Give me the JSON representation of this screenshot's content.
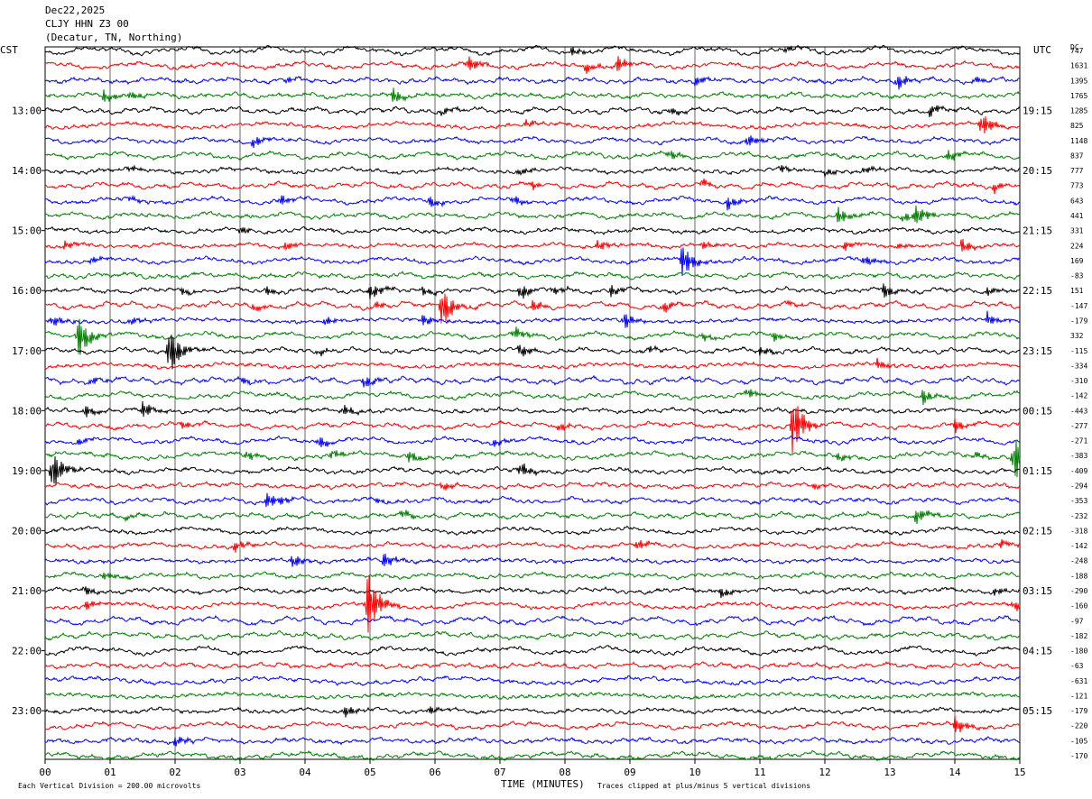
{
  "header": {
    "date": "Dec22,2025",
    "station": "CLJY HHN Z3 00",
    "location": "(Decatur, TN, Northing)"
  },
  "left_axis_title": "CST",
  "right_axis_title": "UTC",
  "dc_title": "DC",
  "footer": {
    "scale_note": "Each Vertical Division =  200.00 microvolts",
    "xlabel": "TIME (MINUTES)",
    "clip_note": "Traces clipped at plus/minus 5 vertical divisions"
  },
  "chart_data": {
    "type": "line",
    "title": "CLJY HHN Z3 00",
    "xlabel": "TIME (MINUTES)",
    "xlim": [
      0,
      15
    ],
    "x_ticks": [
      "00",
      "01",
      "02",
      "03",
      "04",
      "05",
      "06",
      "07",
      "08",
      "09",
      "10",
      "11",
      "12",
      "13",
      "14",
      "15"
    ],
    "trace_colors": [
      "#000000",
      "#ff0000",
      "#0000ff",
      "#007f00"
    ],
    "left_time_labels": [
      "13:00",
      "14:00",
      "15:00",
      "16:00",
      "17:00",
      "18:00",
      "19:00",
      "20:00",
      "21:00",
      "22:00",
      "23:00"
    ],
    "right_time_labels": [
      "19:15",
      "20:15",
      "21:15",
      "22:15",
      "23:15",
      "00:15",
      "01:15",
      "02:15",
      "03:15",
      "04:15",
      "05:15"
    ],
    "dc_offsets": [
      "747",
      "1631",
      "1395",
      "1765",
      "1285",
      "825",
      "1148",
      "837",
      "777",
      "773",
      "643",
      "441",
      "331",
      "224",
      "169",
      "-83",
      "151",
      "-147",
      "-179",
      "332",
      "-115",
      "-334",
      "-310",
      "-142",
      "-443",
      "-277",
      "-271",
      "-383",
      "-409",
      "-294",
      "-353",
      "-232",
      "-318",
      "-142",
      "-248",
      "-188",
      "-290",
      "-160",
      "-97",
      "-182",
      "-180",
      "-63",
      "-631",
      "-121",
      "-179",
      "-220",
      "-105",
      "-170"
    ],
    "events": [
      {
        "trace": 0,
        "x": 8.1,
        "amp": 5
      },
      {
        "trace": 0,
        "x": 11.4,
        "amp": 4
      },
      {
        "trace": 1,
        "x": 6.5,
        "amp": 10
      },
      {
        "trace": 1,
        "x": 8.3,
        "amp": 7
      },
      {
        "trace": 1,
        "x": 8.8,
        "amp": 10
      },
      {
        "trace": 2,
        "x": 3.7,
        "amp": 4
      },
      {
        "trace": 2,
        "x": 10.0,
        "amp": 6
      },
      {
        "trace": 2,
        "x": 13.1,
        "amp": 10
      },
      {
        "trace": 2,
        "x": 14.3,
        "amp": 5
      },
      {
        "trace": 3,
        "x": 0.9,
        "amp": 7
      },
      {
        "trace": 3,
        "x": 1.3,
        "amp": 6
      },
      {
        "trace": 3,
        "x": 5.35,
        "amp": 9
      },
      {
        "trace": 4,
        "x": 6.1,
        "amp": 5
      },
      {
        "trace": 4,
        "x": 9.6,
        "amp": 5
      },
      {
        "trace": 4,
        "x": 13.6,
        "amp": 7
      },
      {
        "trace": 5,
        "x": 14.4,
        "amp": 14
      },
      {
        "trace": 5,
        "x": 7.4,
        "amp": 4
      },
      {
        "trace": 6,
        "x": 3.2,
        "amp": 7
      },
      {
        "trace": 6,
        "x": 10.8,
        "amp": 8
      },
      {
        "trace": 7,
        "x": 9.6,
        "amp": 6
      },
      {
        "trace": 7,
        "x": 13.9,
        "amp": 8
      },
      {
        "trace": 8,
        "x": 1.3,
        "amp": 4
      },
      {
        "trace": 8,
        "x": 7.3,
        "amp": 5
      },
      {
        "trace": 8,
        "x": 11.3,
        "amp": 5
      },
      {
        "trace": 8,
        "x": 12.0,
        "amp": 5
      },
      {
        "trace": 8,
        "x": 12.6,
        "amp": 5
      },
      {
        "trace": 9,
        "x": 7.5,
        "amp": 4
      },
      {
        "trace": 9,
        "x": 10.1,
        "amp": 6
      },
      {
        "trace": 9,
        "x": 14.6,
        "amp": 6
      },
      {
        "trace": 10,
        "x": 1.3,
        "amp": 4
      },
      {
        "trace": 10,
        "x": 3.6,
        "amp": 7
      },
      {
        "trace": 10,
        "x": 5.9,
        "amp": 7
      },
      {
        "trace": 10,
        "x": 7.2,
        "amp": 6
      },
      {
        "trace": 10,
        "x": 10.5,
        "amp": 8
      },
      {
        "trace": 11,
        "x": 12.2,
        "amp": 10
      },
      {
        "trace": 11,
        "x": 13.4,
        "amp": 12
      },
      {
        "trace": 11,
        "x": 13.2,
        "amp": 6
      },
      {
        "trace": 12,
        "x": 3.0,
        "amp": 5
      },
      {
        "trace": 13,
        "x": 0.3,
        "amp": 5
      },
      {
        "trace": 13,
        "x": 3.7,
        "amp": 6
      },
      {
        "trace": 13,
        "x": 8.5,
        "amp": 7
      },
      {
        "trace": 13,
        "x": 10.1,
        "amp": 5
      },
      {
        "trace": 13,
        "x": 12.3,
        "amp": 5
      },
      {
        "trace": 13,
        "x": 13.1,
        "amp": 4
      },
      {
        "trace": 13,
        "x": 14.1,
        "amp": 8
      },
      {
        "trace": 14,
        "x": 0.7,
        "amp": 4
      },
      {
        "trace": 14,
        "x": 9.8,
        "amp": 20
      },
      {
        "trace": 14,
        "x": 12.6,
        "amp": 7
      },
      {
        "trace": 16,
        "x": 2.1,
        "amp": 4
      },
      {
        "trace": 16,
        "x": 3.4,
        "amp": 5
      },
      {
        "trace": 16,
        "x": 5.0,
        "amp": 9
      },
      {
        "trace": 16,
        "x": 5.8,
        "amp": 5
      },
      {
        "trace": 16,
        "x": 7.3,
        "amp": 10
      },
      {
        "trace": 16,
        "x": 7.8,
        "amp": 6
      },
      {
        "trace": 16,
        "x": 8.7,
        "amp": 7
      },
      {
        "trace": 16,
        "x": 12.9,
        "amp": 9
      },
      {
        "trace": 16,
        "x": 14.5,
        "amp": 5
      },
      {
        "trace": 17,
        "x": 3.2,
        "amp": 5
      },
      {
        "trace": 17,
        "x": 5.1,
        "amp": 4
      },
      {
        "trace": 17,
        "x": 6.1,
        "amp": 25
      },
      {
        "trace": 17,
        "x": 7.5,
        "amp": 6
      },
      {
        "trace": 17,
        "x": 9.5,
        "amp": 7
      },
      {
        "trace": 17,
        "x": 11.4,
        "amp": 4
      },
      {
        "trace": 18,
        "x": 0.1,
        "amp": 7
      },
      {
        "trace": 18,
        "x": 1.3,
        "amp": 5
      },
      {
        "trace": 18,
        "x": 4.3,
        "amp": 6
      },
      {
        "trace": 18,
        "x": 5.8,
        "amp": 7
      },
      {
        "trace": 18,
        "x": 8.9,
        "amp": 10
      },
      {
        "trace": 18,
        "x": 14.5,
        "amp": 8
      },
      {
        "trace": 19,
        "x": 0.5,
        "amp": 25
      },
      {
        "trace": 19,
        "x": 7.2,
        "amp": 8
      },
      {
        "trace": 19,
        "x": 10.1,
        "amp": 5
      },
      {
        "trace": 19,
        "x": 11.2,
        "amp": 5
      },
      {
        "trace": 20,
        "x": 1.9,
        "amp": 30
      },
      {
        "trace": 20,
        "x": 4.2,
        "amp": 4
      },
      {
        "trace": 20,
        "x": 7.3,
        "amp": 8
      },
      {
        "trace": 20,
        "x": 9.3,
        "amp": 4
      },
      {
        "trace": 20,
        "x": 11.0,
        "amp": 5
      },
      {
        "trace": 21,
        "x": 12.8,
        "amp": 6
      },
      {
        "trace": 22,
        "x": 3.0,
        "amp": 4
      },
      {
        "trace": 22,
        "x": 4.9,
        "amp": 8
      },
      {
        "trace": 22,
        "x": 0.7,
        "amp": 4
      },
      {
        "trace": 23,
        "x": 10.8,
        "amp": 6
      },
      {
        "trace": 23,
        "x": 13.5,
        "amp": 9
      },
      {
        "trace": 24,
        "x": 0.6,
        "amp": 8
      },
      {
        "trace": 24,
        "x": 1.5,
        "amp": 9
      },
      {
        "trace": 24,
        "x": 4.6,
        "amp": 6
      },
      {
        "trace": 25,
        "x": 2.1,
        "amp": 5
      },
      {
        "trace": 25,
        "x": 7.9,
        "amp": 5
      },
      {
        "trace": 25,
        "x": 11.5,
        "amp": 35
      },
      {
        "trace": 25,
        "x": 14.0,
        "amp": 8
      },
      {
        "trace": 26,
        "x": 0.5,
        "amp": 4
      },
      {
        "trace": 26,
        "x": 4.2,
        "amp": 7
      },
      {
        "trace": 26,
        "x": 6.9,
        "amp": 4
      },
      {
        "trace": 27,
        "x": 3.1,
        "amp": 6
      },
      {
        "trace": 27,
        "x": 4.4,
        "amp": 6
      },
      {
        "trace": 27,
        "x": 5.6,
        "amp": 7
      },
      {
        "trace": 27,
        "x": 12.2,
        "amp": 5
      },
      {
        "trace": 27,
        "x": 14.3,
        "amp": 5
      },
      {
        "trace": 27,
        "x": 14.9,
        "amp": 30
      },
      {
        "trace": 28,
        "x": 0.1,
        "amp": 25
      },
      {
        "trace": 28,
        "x": 7.3,
        "amp": 9
      },
      {
        "trace": 29,
        "x": 6.1,
        "amp": 5
      },
      {
        "trace": 29,
        "x": 11.8,
        "amp": 4
      },
      {
        "trace": 30,
        "x": 3.4,
        "amp": 10
      },
      {
        "trace": 30,
        "x": 3.6,
        "amp": 5
      },
      {
        "trace": 30,
        "x": 5.1,
        "amp": 4
      },
      {
        "trace": 31,
        "x": 1.2,
        "amp": 4
      },
      {
        "trace": 31,
        "x": 5.5,
        "amp": 5
      },
      {
        "trace": 31,
        "x": 13.4,
        "amp": 9
      },
      {
        "trace": 33,
        "x": 2.9,
        "amp": 7
      },
      {
        "trace": 33,
        "x": 9.1,
        "amp": 6
      },
      {
        "trace": 33,
        "x": 14.7,
        "amp": 5
      },
      {
        "trace": 34,
        "x": 3.8,
        "amp": 8
      },
      {
        "trace": 34,
        "x": 5.2,
        "amp": 9
      },
      {
        "trace": 35,
        "x": 0.9,
        "amp": 5
      },
      {
        "trace": 36,
        "x": 0.6,
        "amp": 6
      },
      {
        "trace": 36,
        "x": 10.4,
        "amp": 6
      },
      {
        "trace": 36,
        "x": 14.6,
        "amp": 4
      },
      {
        "trace": 37,
        "x": 0.6,
        "amp": 6
      },
      {
        "trace": 37,
        "x": 4.95,
        "amp": 40
      },
      {
        "trace": 37,
        "x": 14.9,
        "amp": 6
      },
      {
        "trace": 44,
        "x": 4.6,
        "amp": 6
      },
      {
        "trace": 44,
        "x": 5.9,
        "amp": 6
      },
      {
        "trace": 45,
        "x": 14.0,
        "amp": 10
      },
      {
        "trace": 46,
        "x": 2.0,
        "amp": 7
      }
    ]
  }
}
